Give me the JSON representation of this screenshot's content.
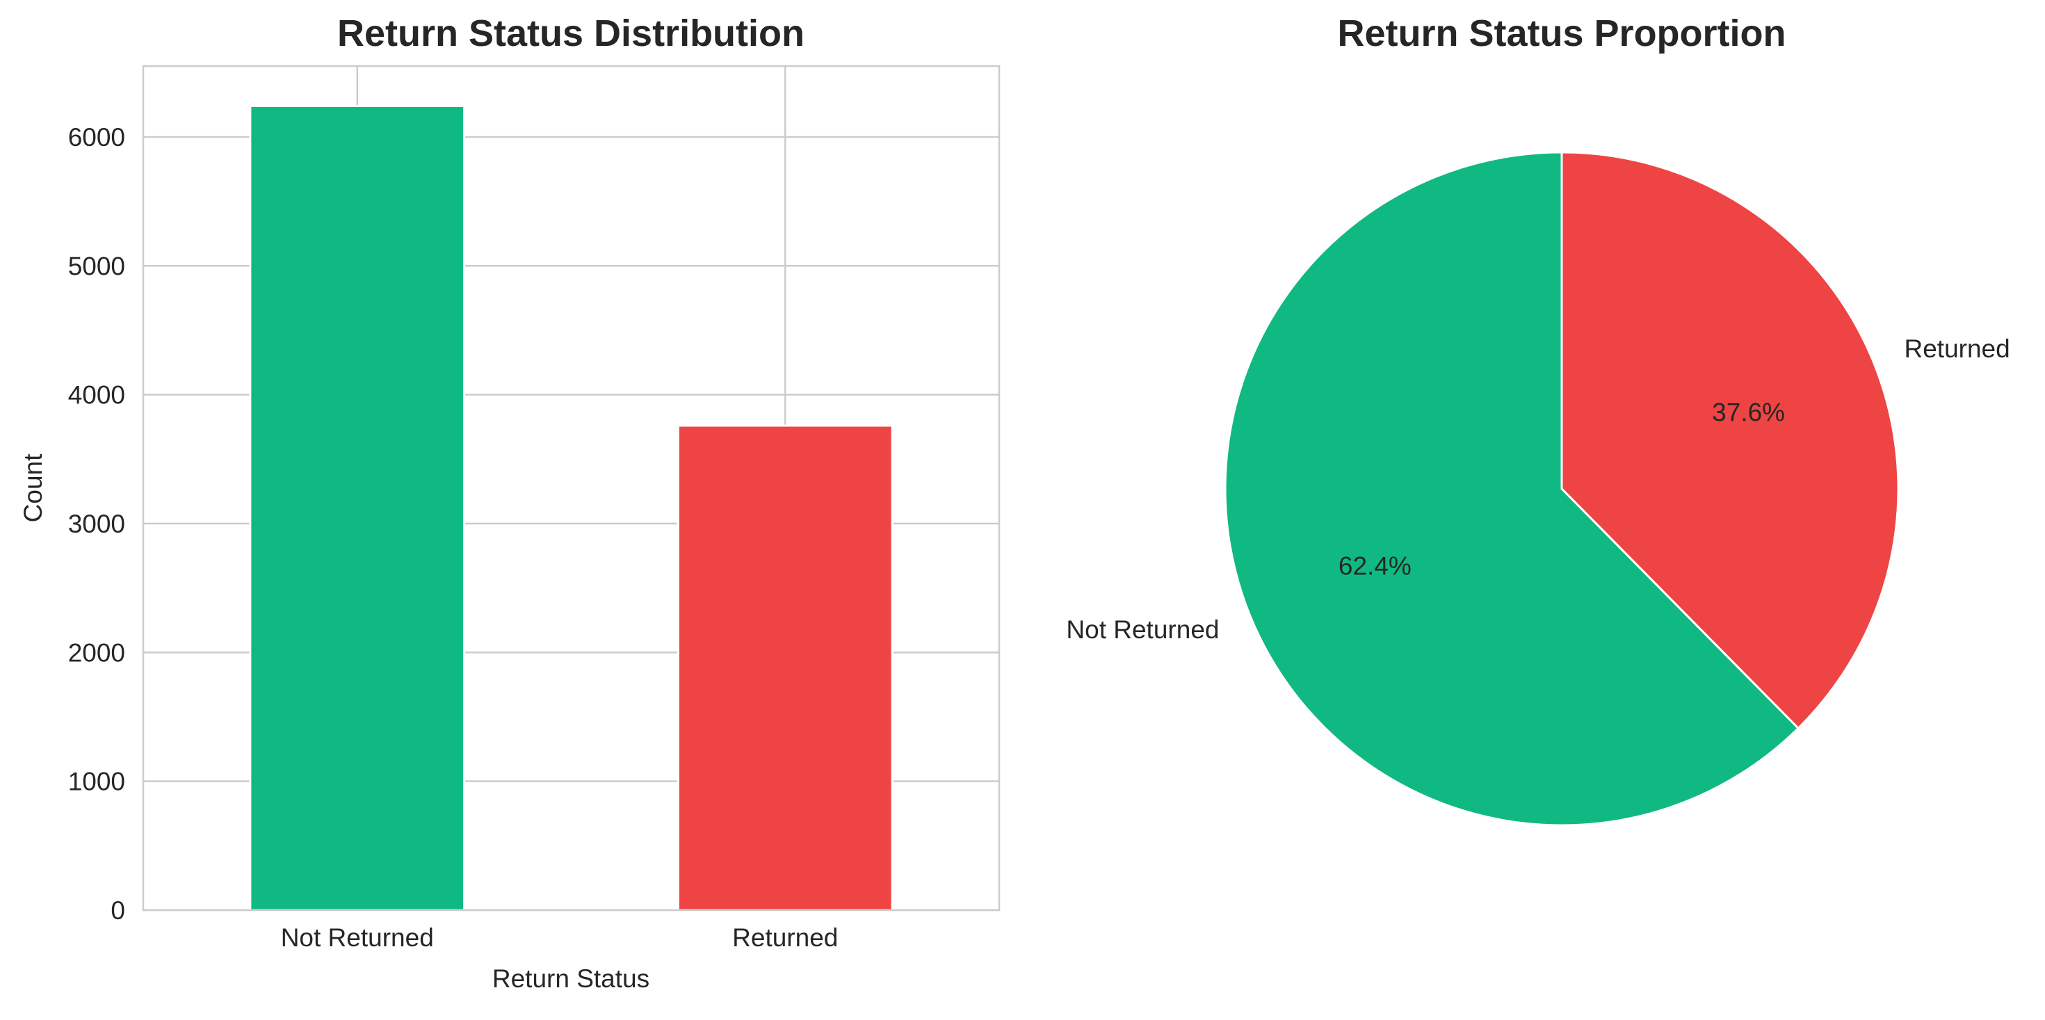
{
  "chart_data": [
    {
      "type": "bar",
      "title": "Return Status Distribution",
      "xlabel": "Return Status",
      "ylabel": "Count",
      "categories": [
        "Not Returned",
        "Returned"
      ],
      "values": [
        6240,
        3760
      ],
      "ylim": [
        0,
        6550
      ],
      "yticks": [
        0,
        1000,
        2000,
        3000,
        4000,
        5000,
        6000
      ],
      "colors": [
        "#10b981",
        "#ef4444"
      ],
      "grid": true
    },
    {
      "type": "pie",
      "title": "Return Status Proportion",
      "labels": [
        "Not Returned",
        "Returned"
      ],
      "values": [
        62.4,
        37.6
      ],
      "autopct": [
        "62.4%",
        "37.6%"
      ],
      "colors": [
        "#10b981",
        "#ef4444"
      ]
    }
  ]
}
